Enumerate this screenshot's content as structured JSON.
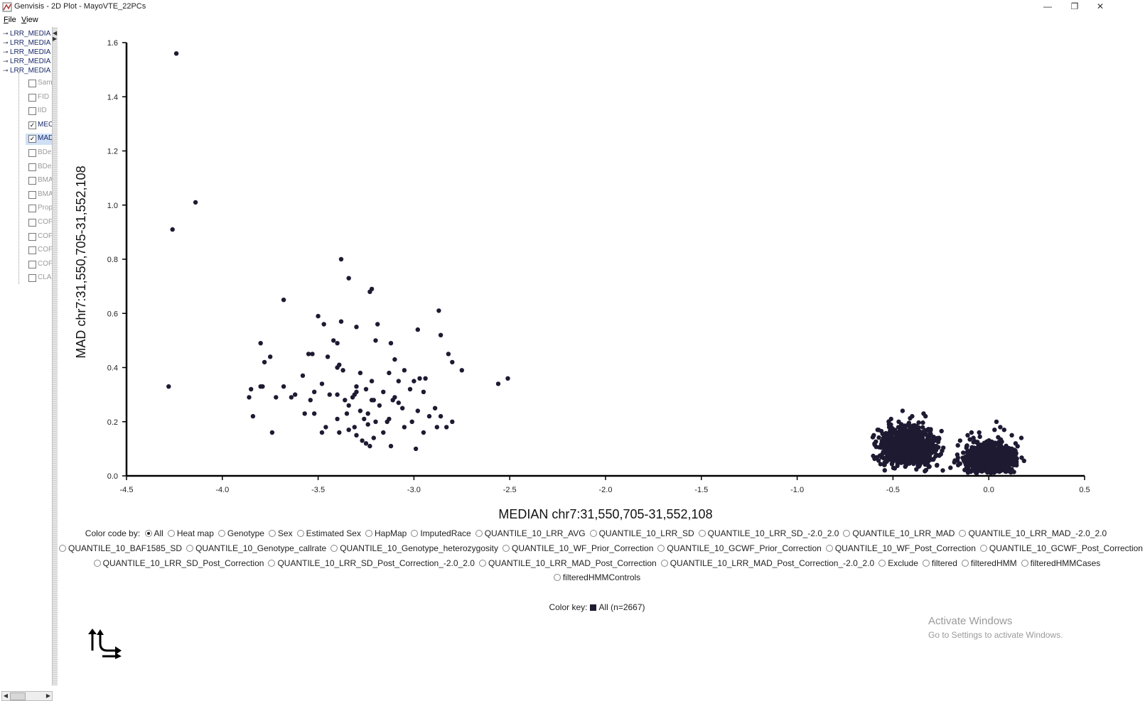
{
  "window": {
    "title": "Genvisis - 2D Plot - MayoVTE_22PCs",
    "minimize": "—",
    "restore": "❐",
    "close": "✕"
  },
  "menu": {
    "file_underline": "F",
    "file_rest": "ile",
    "view_underline": "V",
    "view_rest": "iew"
  },
  "tree": {
    "files": [
      "LRR_MEDIA",
      "LRR_MEDIA",
      "LRR_MEDIA",
      "LRR_MEDIA",
      "LRR_MEDIA"
    ],
    "columns": [
      {
        "label": "Sam",
        "checked": false
      },
      {
        "label": "FID",
        "checked": false
      },
      {
        "label": "IID",
        "checked": false
      },
      {
        "label": "MEC",
        "checked": true
      },
      {
        "label": "MAD",
        "checked": true
      },
      {
        "label": "BDe",
        "checked": false
      },
      {
        "label": "BDe",
        "checked": false
      },
      {
        "label": "BMA",
        "checked": false
      },
      {
        "label": "BMA",
        "checked": false
      },
      {
        "label": "Prop",
        "checked": false
      },
      {
        "label": "COF",
        "checked": false
      },
      {
        "label": "COF",
        "checked": false
      },
      {
        "label": "COF",
        "checked": false
      },
      {
        "label": "COF",
        "checked": false
      },
      {
        "label": "CLA",
        "checked": false
      }
    ],
    "selected_index": 4
  },
  "chart_data": {
    "type": "scatter",
    "xlabel": "MEDIAN chr7:31,550,705-31,552,108",
    "ylabel": "MAD chr7:31,550,705-31,552,108",
    "xlim": [
      -4.5,
      0.5
    ],
    "ylim": [
      0.0,
      1.6
    ],
    "xticks": [
      "-4.5",
      "-4.0",
      "-3.5",
      "-3.0",
      "-2.5",
      "-2.0",
      "-1.5",
      "-1.0",
      "-0.5",
      "0.0",
      "0.5"
    ],
    "yticks": [
      "0.0",
      "0.2",
      "0.4",
      "0.6",
      "0.8",
      "1.0",
      "1.2",
      "1.4",
      "1.6"
    ],
    "grid": false,
    "point_color": "#1e1a32",
    "points": [
      [
        -4.24,
        1.56
      ],
      [
        -4.14,
        1.01
      ],
      [
        -4.26,
        0.91
      ],
      [
        -4.28,
        0.33
      ],
      [
        -3.38,
        0.8
      ],
      [
        -3.34,
        0.73
      ],
      [
        -3.22,
        0.69
      ],
      [
        -3.23,
        0.68
      ],
      [
        -3.68,
        0.65
      ],
      [
        -2.87,
        0.61
      ],
      [
        -3.5,
        0.59
      ],
      [
        -3.38,
        0.57
      ],
      [
        -3.47,
        0.56
      ],
      [
        -3.19,
        0.56
      ],
      [
        -3.3,
        0.55
      ],
      [
        -2.98,
        0.54
      ],
      [
        -2.86,
        0.52
      ],
      [
        -3.42,
        0.5
      ],
      [
        -3.2,
        0.5
      ],
      [
        -3.4,
        0.49
      ],
      [
        -3.12,
        0.49
      ],
      [
        -3.8,
        0.49
      ],
      [
        -3.55,
        0.45
      ],
      [
        -3.53,
        0.45
      ],
      [
        -2.82,
        0.45
      ],
      [
        -3.75,
        0.44
      ],
      [
        -3.45,
        0.44
      ],
      [
        -3.1,
        0.43
      ],
      [
        -3.78,
        0.42
      ],
      [
        -3.39,
        0.41
      ],
      [
        -2.8,
        0.42
      ],
      [
        -3.4,
        0.4
      ],
      [
        -3.37,
        0.39
      ],
      [
        -3.05,
        0.39
      ],
      [
        -3.28,
        0.38
      ],
      [
        -2.75,
        0.39
      ],
      [
        -3.13,
        0.38
      ],
      [
        -3.58,
        0.37
      ],
      [
        -2.97,
        0.36
      ],
      [
        -3.0,
        0.35
      ],
      [
        -2.94,
        0.36
      ],
      [
        -3.22,
        0.35
      ],
      [
        -3.08,
        0.35
      ],
      [
        -3.48,
        0.34
      ],
      [
        -3.3,
        0.33
      ],
      [
        -3.8,
        0.33
      ],
      [
        -3.79,
        0.33
      ],
      [
        -3.85,
        0.32
      ],
      [
        -3.68,
        0.33
      ],
      [
        -3.25,
        0.32
      ],
      [
        -3.02,
        0.32
      ],
      [
        -3.52,
        0.31
      ],
      [
        -3.3,
        0.31
      ],
      [
        -3.16,
        0.31
      ],
      [
        -2.95,
        0.31
      ],
      [
        -3.4,
        0.3
      ],
      [
        -3.31,
        0.3
      ],
      [
        -3.62,
        0.3
      ],
      [
        -3.72,
        0.29
      ],
      [
        -3.44,
        0.3
      ],
      [
        -3.32,
        0.29
      ],
      [
        -3.1,
        0.29
      ],
      [
        -3.64,
        0.29
      ],
      [
        -3.86,
        0.29
      ],
      [
        -3.22,
        0.28
      ],
      [
        -3.21,
        0.28
      ],
      [
        -3.36,
        0.28
      ],
      [
        -3.54,
        0.28
      ],
      [
        -3.11,
        0.28
      ],
      [
        -3.08,
        0.27
      ],
      [
        -3.18,
        0.26
      ],
      [
        -3.34,
        0.26
      ],
      [
        -3.06,
        0.25
      ],
      [
        -2.89,
        0.25
      ],
      [
        -3.28,
        0.24
      ],
      [
        -2.98,
        0.24
      ],
      [
        -3.35,
        0.23
      ],
      [
        -3.24,
        0.23
      ],
      [
        -3.57,
        0.23
      ],
      [
        -3.52,
        0.23
      ],
      [
        -2.92,
        0.22
      ],
      [
        -2.86,
        0.22
      ],
      [
        -3.84,
        0.22
      ],
      [
        -3.13,
        0.21
      ],
      [
        -3.26,
        0.21
      ],
      [
        -3.4,
        0.21
      ],
      [
        -3.2,
        0.2
      ],
      [
        -3.01,
        0.2
      ],
      [
        -3.14,
        0.2
      ],
      [
        -3.24,
        0.19
      ],
      [
        -2.8,
        0.2
      ],
      [
        -3.46,
        0.18
      ],
      [
        -3.31,
        0.18
      ],
      [
        -2.83,
        0.18
      ],
      [
        -3.05,
        0.18
      ],
      [
        -2.88,
        0.18
      ],
      [
        -3.34,
        0.17
      ],
      [
        -3.39,
        0.16
      ],
      [
        -3.48,
        0.16
      ],
      [
        -2.95,
        0.16
      ],
      [
        -3.74,
        0.16
      ],
      [
        -3.16,
        0.16
      ],
      [
        -3.3,
        0.15
      ],
      [
        -3.21,
        0.14
      ],
      [
        -3.27,
        0.13
      ],
      [
        -3.25,
        0.12
      ],
      [
        -3.23,
        0.11
      ],
      [
        -3.12,
        0.11
      ],
      [
        -2.99,
        0.1
      ],
      [
        -2.51,
        0.36
      ],
      [
        -2.56,
        0.34
      ],
      [
        -0.45,
        0.24
      ],
      [
        -0.34,
        0.23
      ],
      [
        -0.33,
        0.22
      ],
      [
        -0.4,
        0.22
      ],
      [
        -0.51,
        0.21
      ],
      [
        -0.47,
        0.2
      ],
      [
        -0.52,
        0.18
      ],
      [
        -0.58,
        0.17
      ],
      [
        -0.6,
        0.15
      ],
      [
        -0.55,
        0.14
      ],
      [
        -0.26,
        0.14
      ],
      [
        -0.3,
        0.12
      ],
      [
        -0.28,
        0.1
      ],
      [
        -0.25,
        0.08
      ],
      [
        -0.29,
        0.06
      ],
      [
        -0.27,
        0.04
      ],
      [
        -0.24,
        0.02
      ],
      [
        -0.2,
        0.03
      ],
      [
        0.04,
        0.2
      ],
      [
        0.06,
        0.18
      ],
      [
        0.03,
        0.17
      ],
      [
        -0.05,
        0.16
      ],
      [
        0.08,
        0.17
      ],
      [
        -0.09,
        0.16
      ],
      [
        -0.11,
        0.15
      ],
      [
        -0.08,
        0.14
      ],
      [
        0.12,
        0.15
      ],
      [
        0.17,
        0.14
      ],
      [
        0.14,
        0.12
      ],
      [
        -0.15,
        0.13
      ],
      [
        -0.18,
        0.05
      ],
      [
        -0.12,
        0.06
      ],
      [
        -0.16,
        0.04
      ],
      [
        0.13,
        0.04
      ],
      [
        0.1,
        0.03
      ],
      [
        0.12,
        0.06
      ],
      [
        -0.03,
        0.02
      ]
    ],
    "clusters": [
      {
        "cx": -0.42,
        "cy": 0.11,
        "sx": 0.07,
        "sy": 0.035,
        "n": 900
      },
      {
        "cx": 0.0,
        "cy": 0.065,
        "sx": 0.065,
        "sy": 0.028,
        "n": 700
      }
    ]
  },
  "color_code": {
    "prefix": "Color code by:",
    "lines": [
      [
        {
          "label": "All",
          "selected": true
        },
        {
          "label": "Heat map"
        },
        {
          "label": "Genotype"
        },
        {
          "label": "Sex"
        },
        {
          "label": "Estimated Sex"
        },
        {
          "label": "HapMap"
        },
        {
          "label": "ImputedRace"
        },
        {
          "label": "QUANTILE_10_LRR_AVG"
        },
        {
          "label": "QUANTILE_10_LRR_SD"
        },
        {
          "label": "QUANTILE_10_LRR_SD_-2.0_2.0"
        },
        {
          "label": "QUANTILE_10_LRR_MAD"
        },
        {
          "label": "QUANTILE_10_LRR_MAD_-2.0_2.0"
        }
      ],
      [
        {
          "label": "QUANTILE_10_BAF1585_SD"
        },
        {
          "label": "QUANTILE_10_Genotype_callrate"
        },
        {
          "label": "QUANTILE_10_Genotype_heterozygosity"
        },
        {
          "label": "QUANTILE_10_WF_Prior_Correction"
        },
        {
          "label": "QUANTILE_10_GCWF_Prior_Correction"
        },
        {
          "label": "QUANTILE_10_WF_Post_Correction"
        },
        {
          "label": "QUANTILE_10_GCWF_Post_Correction"
        }
      ],
      [
        {
          "label": "QUANTILE_10_LRR_SD_Post_Correction"
        },
        {
          "label": "QUANTILE_10_LRR_SD_Post_Correction_-2.0_2.0"
        },
        {
          "label": "QUANTILE_10_LRR_MAD_Post_Correction"
        },
        {
          "label": "QUANTILE_10_LRR_MAD_Post_Correction_-2.0_2.0"
        },
        {
          "label": "Exclude"
        },
        {
          "label": "filtered"
        },
        {
          "label": "filteredHMM"
        },
        {
          "label": "filteredHMMCases"
        }
      ],
      [
        {
          "label": "filteredHMMControls"
        }
      ]
    ]
  },
  "color_key": {
    "prefix": "Color key:",
    "entry": "All (n=2667)",
    "swatch": "#1e1a32"
  },
  "watermark": {
    "line1": "Activate Windows",
    "line2": "Go to Settings to activate Windows."
  }
}
